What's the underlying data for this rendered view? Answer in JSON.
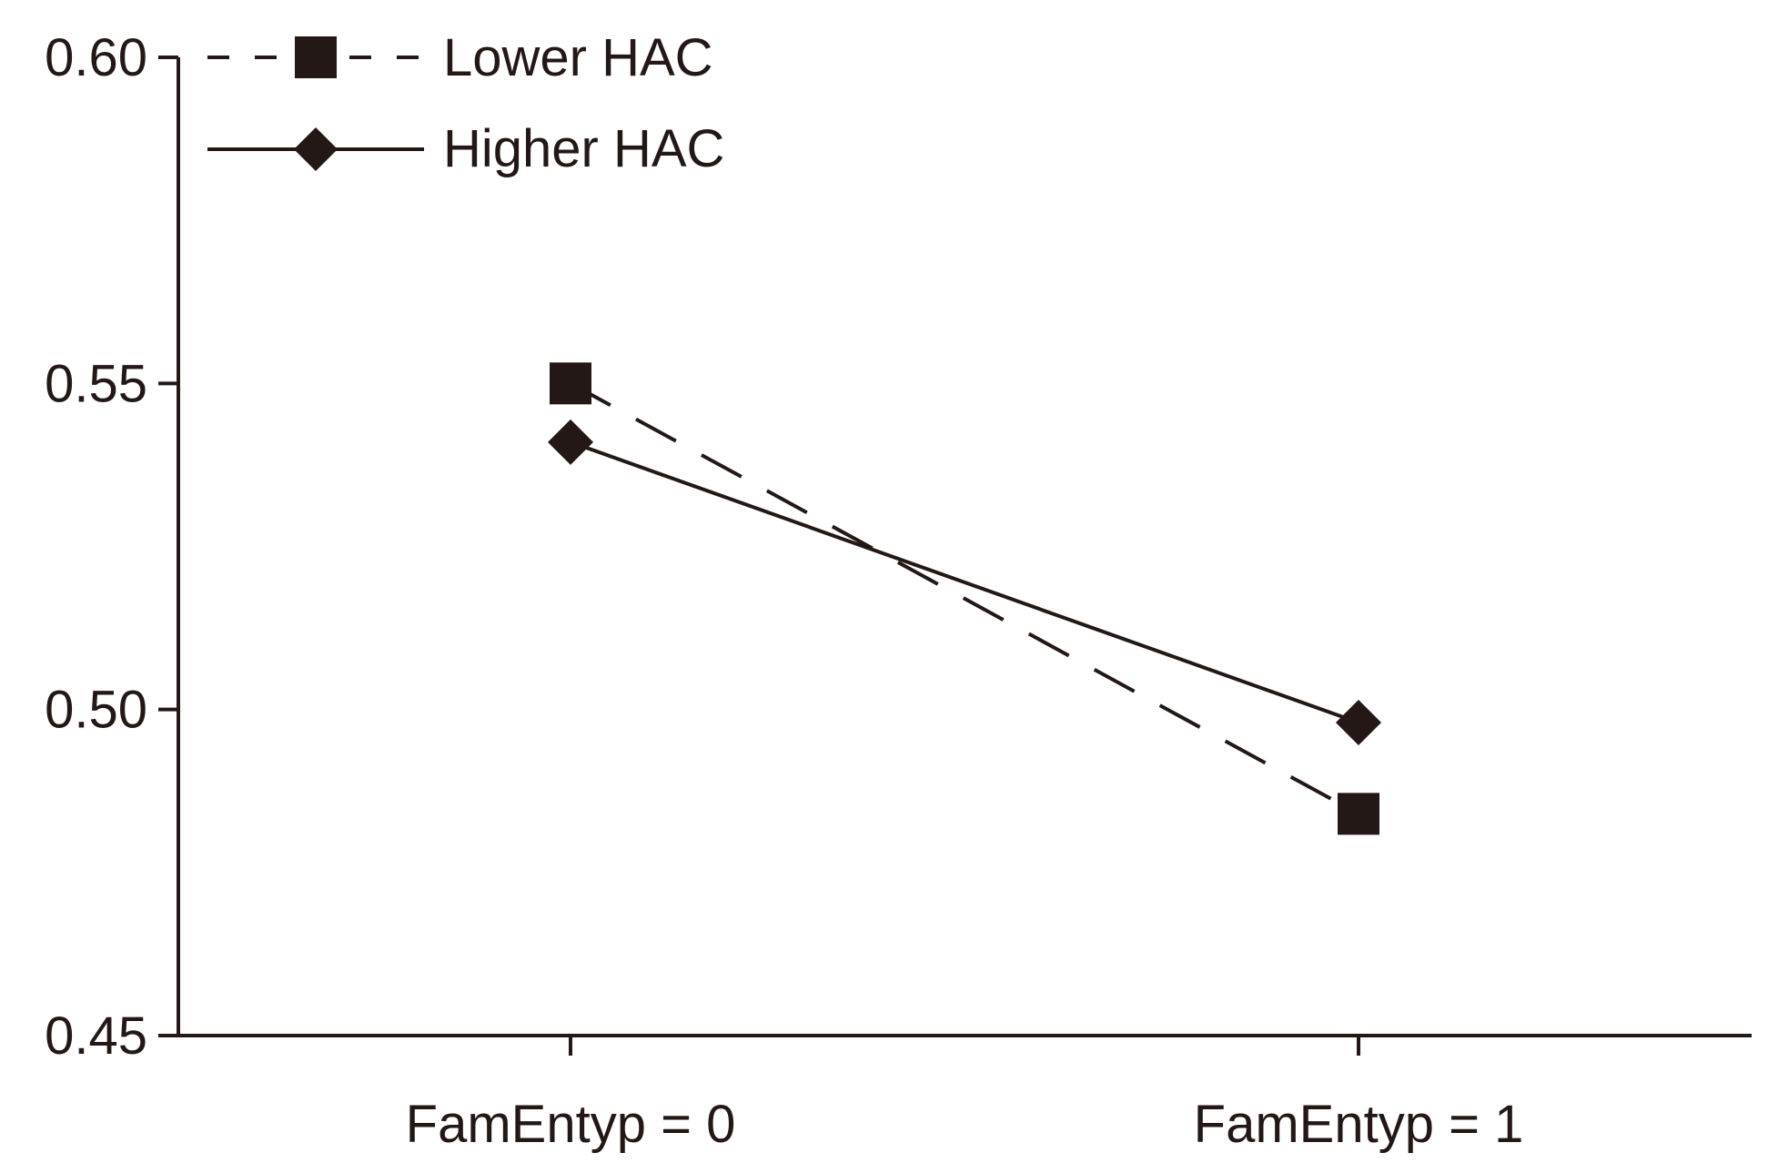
{
  "chart_data": {
    "type": "line",
    "title": "",
    "xlabel": "",
    "ylabel": "",
    "categories": [
      "FamEntyp = 0",
      "FamEntyp = 1"
    ],
    "ylim": [
      0.45,
      0.6
    ],
    "yticks": [
      "0.45",
      "0.50",
      "0.55",
      "0.60"
    ],
    "ytick_values": [
      0.45,
      0.5,
      0.55,
      0.6
    ],
    "grid": false,
    "legend_position": "top-left",
    "ink_color": "#231815",
    "series": [
      {
        "name": "Lower HAC",
        "values": [
          0.55,
          0.484
        ],
        "line_style": "dashed",
        "marker": "square"
      },
      {
        "name": "Higher HAC",
        "values": [
          0.541,
          0.498
        ],
        "line_style": "solid",
        "marker": "diamond"
      }
    ]
  }
}
